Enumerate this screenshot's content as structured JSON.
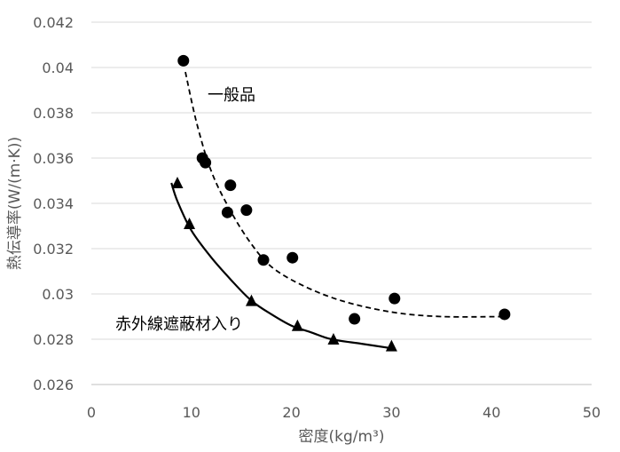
{
  "chart_data": {
    "type": "scatter",
    "xlabel": "密度(kg/m³)",
    "ylabel": "熱伝導率(W/(m·K))",
    "xlim": [
      0,
      50
    ],
    "ylim": [
      0.026,
      0.042
    ],
    "x_ticks": [
      {
        "value": 0,
        "label": "0"
      },
      {
        "value": 10,
        "label": "10"
      },
      {
        "value": 20,
        "label": "20"
      },
      {
        "value": 30,
        "label": "30"
      },
      {
        "value": 40,
        "label": "40"
      },
      {
        "value": 50,
        "label": "50"
      }
    ],
    "y_ticks": [
      {
        "value": 0.026,
        "label": "0.026"
      },
      {
        "value": 0.028,
        "label": "0.028"
      },
      {
        "value": 0.03,
        "label": "0.03"
      },
      {
        "value": 0.032,
        "label": "0.032"
      },
      {
        "value": 0.034,
        "label": "0.034"
      },
      {
        "value": 0.036,
        "label": "0.036"
      },
      {
        "value": 0.038,
        "label": "0.038"
      },
      {
        "value": 0.04,
        "label": "0.04"
      },
      {
        "value": 0.042,
        "label": "0.042"
      }
    ],
    "grid": {
      "horizontal": true,
      "vertical": false
    },
    "legend": "none",
    "series": [
      {
        "id": "general",
        "label": "一般品",
        "marker": "circle",
        "color": "#000000",
        "trend_style": "dashed",
        "points": [
          {
            "x": 9.2,
            "y": 0.0403
          },
          {
            "x": 11.1,
            "y": 0.036
          },
          {
            "x": 11.4,
            "y": 0.0358
          },
          {
            "x": 13.6,
            "y": 0.0336
          },
          {
            "x": 13.9,
            "y": 0.0348
          },
          {
            "x": 15.5,
            "y": 0.0337
          },
          {
            "x": 17.2,
            "y": 0.0315
          },
          {
            "x": 20.1,
            "y": 0.0316
          },
          {
            "x": 26.3,
            "y": 0.0289
          },
          {
            "x": 30.3,
            "y": 0.0298
          },
          {
            "x": 41.3,
            "y": 0.0291
          }
        ],
        "trend": [
          {
            "x": 9.4,
            "y": 0.0398
          },
          {
            "x": 10.5,
            "y": 0.0376
          },
          {
            "x": 12,
            "y": 0.0354
          },
          {
            "x": 14,
            "y": 0.0336
          },
          {
            "x": 16,
            "y": 0.0322
          },
          {
            "x": 18,
            "y": 0.0312
          },
          {
            "x": 21,
            "y": 0.0304
          },
          {
            "x": 25,
            "y": 0.0297
          },
          {
            "x": 30,
            "y": 0.0292
          },
          {
            "x": 35,
            "y": 0.029
          },
          {
            "x": 41.3,
            "y": 0.029
          }
        ]
      },
      {
        "id": "infrared",
        "label": "赤外線遮蔽材入り",
        "marker": "triangle",
        "color": "#000000",
        "trend_style": "solid",
        "points": [
          {
            "x": 8.6,
            "y": 0.0349
          },
          {
            "x": 9.8,
            "y": 0.0331
          },
          {
            "x": 16.0,
            "y": 0.0297
          },
          {
            "x": 20.6,
            "y": 0.0286
          },
          {
            "x": 24.2,
            "y": 0.028
          },
          {
            "x": 30.0,
            "y": 0.0277
          }
        ],
        "trend": [
          {
            "x": 8.0,
            "y": 0.0349
          },
          {
            "x": 8.6,
            "y": 0.0341
          },
          {
            "x": 10.0,
            "y": 0.0328
          },
          {
            "x": 12.0,
            "y": 0.0316
          },
          {
            "x": 14.0,
            "y": 0.0306
          },
          {
            "x": 16.0,
            "y": 0.0297
          },
          {
            "x": 18.0,
            "y": 0.0291
          },
          {
            "x": 20.0,
            "y": 0.0286
          },
          {
            "x": 22.0,
            "y": 0.0283
          },
          {
            "x": 24.0,
            "y": 0.028
          },
          {
            "x": 27.0,
            "y": 0.0278
          },
          {
            "x": 30.0,
            "y": 0.0276
          }
        ]
      }
    ]
  }
}
